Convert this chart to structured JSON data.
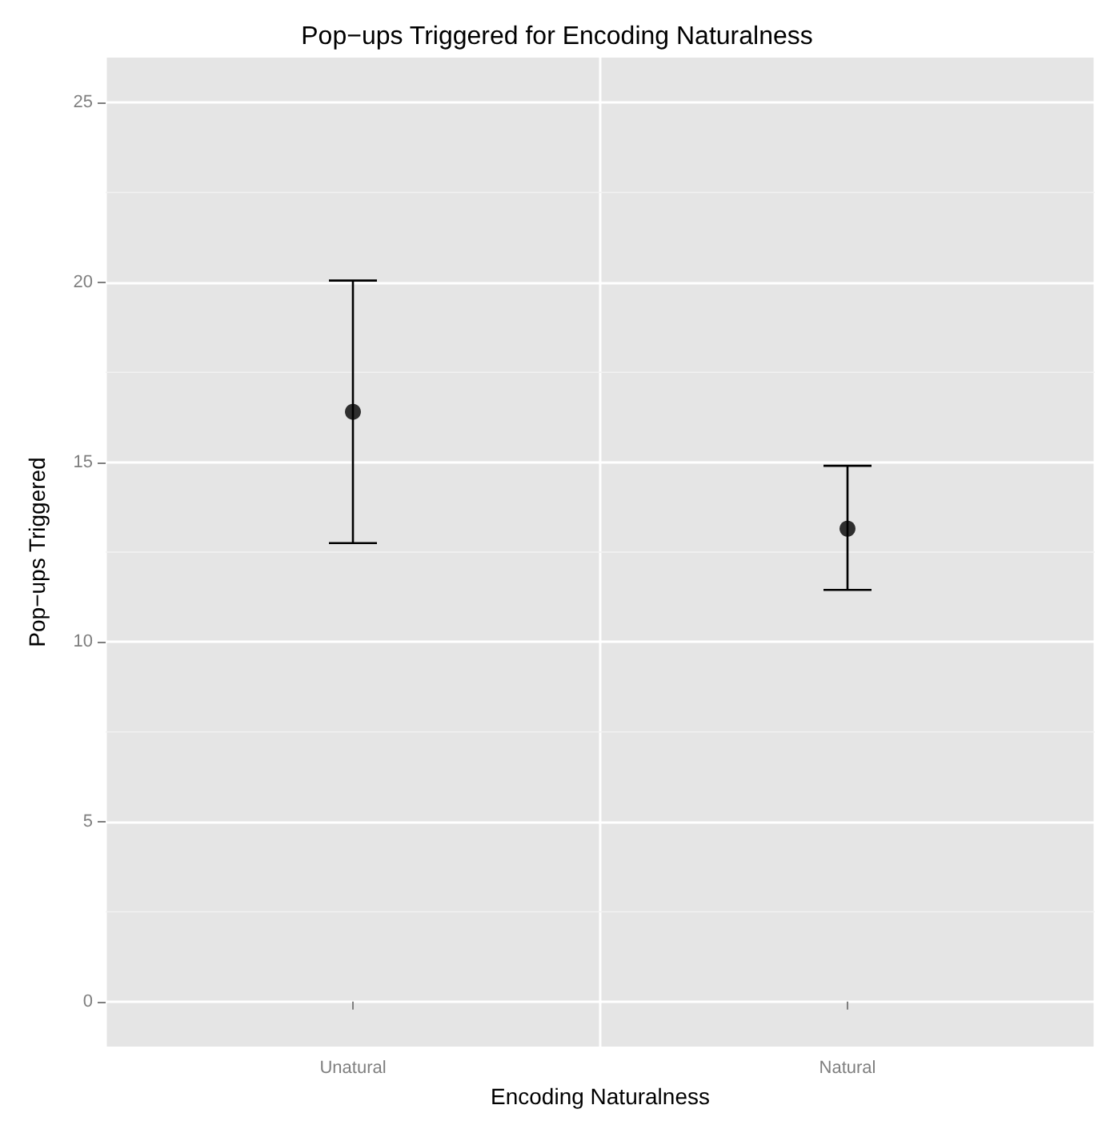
{
  "chart_data": {
    "type": "scatter",
    "title": "Pop−ups Triggered for Encoding Naturalness",
    "xlabel": "Encoding Naturalness",
    "ylabel": "Pop−ups Triggered",
    "categories": [
      "Unatural",
      "Natural"
    ],
    "values": [
      16.4,
      13.15
    ],
    "errors": [
      [
        12.75,
        20.05
      ],
      [
        11.45,
        14.9
      ]
    ],
    "color": "#000000",
    "marker": "circle",
    "ylim": [
      -1.25,
      26.25
    ],
    "yticks": [
      0,
      5,
      10,
      15,
      20,
      25
    ],
    "grid": true
  }
}
